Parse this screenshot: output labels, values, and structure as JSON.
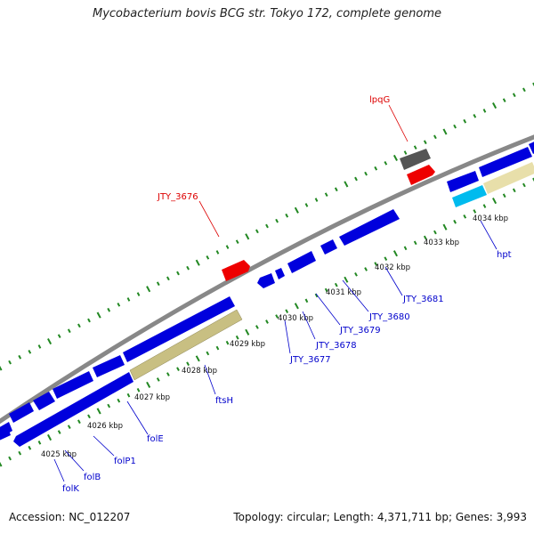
{
  "title": "Mycobacterium bovis BCG str. Tokyo 172, complete genome",
  "accession": "Accession: NC_012207",
  "summary": "Topology: circular; Length: 4,371,711 bp; Genes: 3,993",
  "colors": {
    "gene_blue": "#0000dd",
    "label_blue": "#0000cc",
    "label_red": "#dd0000",
    "red_gene": "#ee0000",
    "gray_gene": "#555555",
    "cyan_gene": "#00bbee",
    "tan_gene": "#c8bf82",
    "backbone": "#888888",
    "tick_green": "#228822"
  },
  "ticks": [
    {
      "label": "4025 kbp"
    },
    {
      "label": "4026 kbp"
    },
    {
      "label": "4027 kbp"
    },
    {
      "label": "4028 kbp"
    },
    {
      "label": "4029 kbp"
    },
    {
      "label": "4030 kbp"
    },
    {
      "label": "4031 kbp"
    },
    {
      "label": "4032 kbp"
    },
    {
      "label": "4033 kbp"
    },
    {
      "label": "4034 kbp"
    }
  ],
  "gene_labels": [
    {
      "text": "folK",
      "color": "blue"
    },
    {
      "text": "folB",
      "color": "blue"
    },
    {
      "text": "folP1",
      "color": "blue"
    },
    {
      "text": "folE",
      "color": "blue"
    },
    {
      "text": "ftsH",
      "color": "blue"
    },
    {
      "text": "JTY_3677",
      "color": "blue"
    },
    {
      "text": "JTY_3678",
      "color": "blue"
    },
    {
      "text": "JTY_3679",
      "color": "blue"
    },
    {
      "text": "JTY_3680",
      "color": "blue"
    },
    {
      "text": "JTY_3681",
      "color": "blue"
    },
    {
      "text": "hpt",
      "color": "blue"
    },
    {
      "text": "JTY_3676",
      "color": "red"
    },
    {
      "text": "lpqG",
      "color": "red"
    }
  ]
}
